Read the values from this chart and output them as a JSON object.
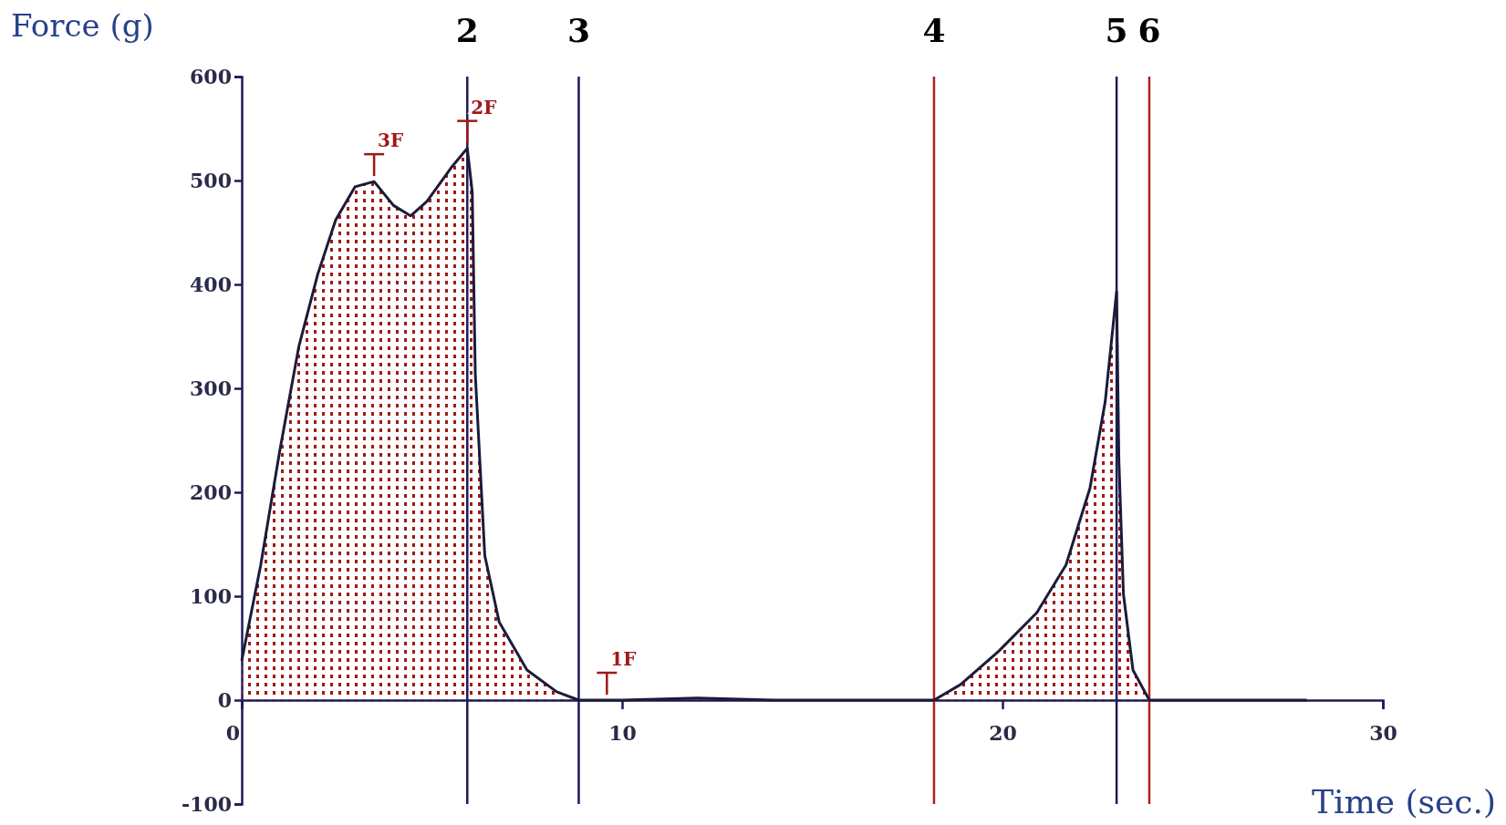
{
  "chart_data": {
    "type": "area",
    "xlabel": "Time (sec.)",
    "ylabel": "Force (g)",
    "xlim": [
      0,
      30
    ],
    "xticks": [
      0,
      10,
      20,
      30
    ],
    "ylim": [
      -100,
      600
    ],
    "yticks": [
      -100,
      0,
      100,
      200,
      300,
      400,
      500,
      600
    ],
    "series": [
      {
        "color": "#1b1b3a",
        "x": [
          0,
          0.5,
          1,
          1.5,
          2,
          2.47,
          2.98,
          3.48,
          3.99,
          4.44,
          4.87,
          5.5,
          5.93,
          6.06,
          6.14,
          6.39,
          6.77,
          7.5,
          8.28,
          8.86,
          10,
          12,
          14,
          16,
          18.2,
          18.9,
          19.9,
          20.9,
          21.67,
          22.3,
          22.7,
          23.0,
          23.06,
          23.18,
          23.43,
          23.86,
          25,
          28
        ],
        "values": [
          38,
          130,
          240,
          340,
          410,
          462,
          494,
          499,
          476,
          466,
          480,
          512,
          531,
          489,
          314,
          139,
          75,
          29,
          8,
          0,
          0,
          2,
          0,
          0,
          0,
          15,
          47,
          84,
          130,
          204,
          287,
          393,
          231,
          102,
          29,
          0,
          0,
          0
        ]
      }
    ],
    "ref_lines": [
      {
        "axis": "x",
        "value": 5.93,
        "color": "#1b1b5a"
      },
      {
        "axis": "x",
        "value": 8.86,
        "color": "#1b1b5a"
      },
      {
        "axis": "x",
        "value": 18.2,
        "color": "#b02020"
      },
      {
        "axis": "x",
        "value": 23.0,
        "color": "#1b1b5a"
      },
      {
        "axis": "x",
        "value": 23.86,
        "color": "#b02020"
      }
    ],
    "annotations": [
      {
        "text": "3F",
        "x": 3.48,
        "y": 499
      },
      {
        "text": "2F",
        "x": 5.93,
        "y": 531
      },
      {
        "text": "1F",
        "x": 9.6,
        "y": 0
      },
      "2",
      "3",
      "4",
      "5",
      "6"
    ]
  }
}
